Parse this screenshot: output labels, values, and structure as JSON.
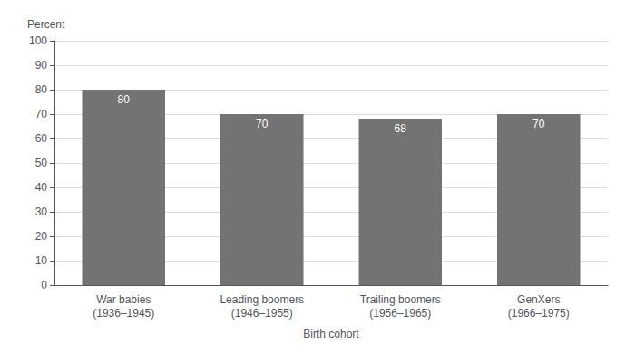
{
  "chart_data": {
    "type": "bar",
    "categories": [
      "War babies\n(1936–1945)",
      "Leading boomers\n(1946–1955)",
      "Trailing boomers\n(1956–1965)",
      "GenXers\n(1966–1975)"
    ],
    "values": [
      80,
      70,
      68,
      70
    ],
    "color": "#737373",
    "xlabel": "Birth cohort",
    "ylabel": "Percent",
    "ylim": [
      0,
      100
    ],
    "yticks": [
      0,
      10,
      20,
      30,
      40,
      50,
      60,
      70,
      80,
      90,
      100
    ],
    "grid": true,
    "data_labels": true
  }
}
